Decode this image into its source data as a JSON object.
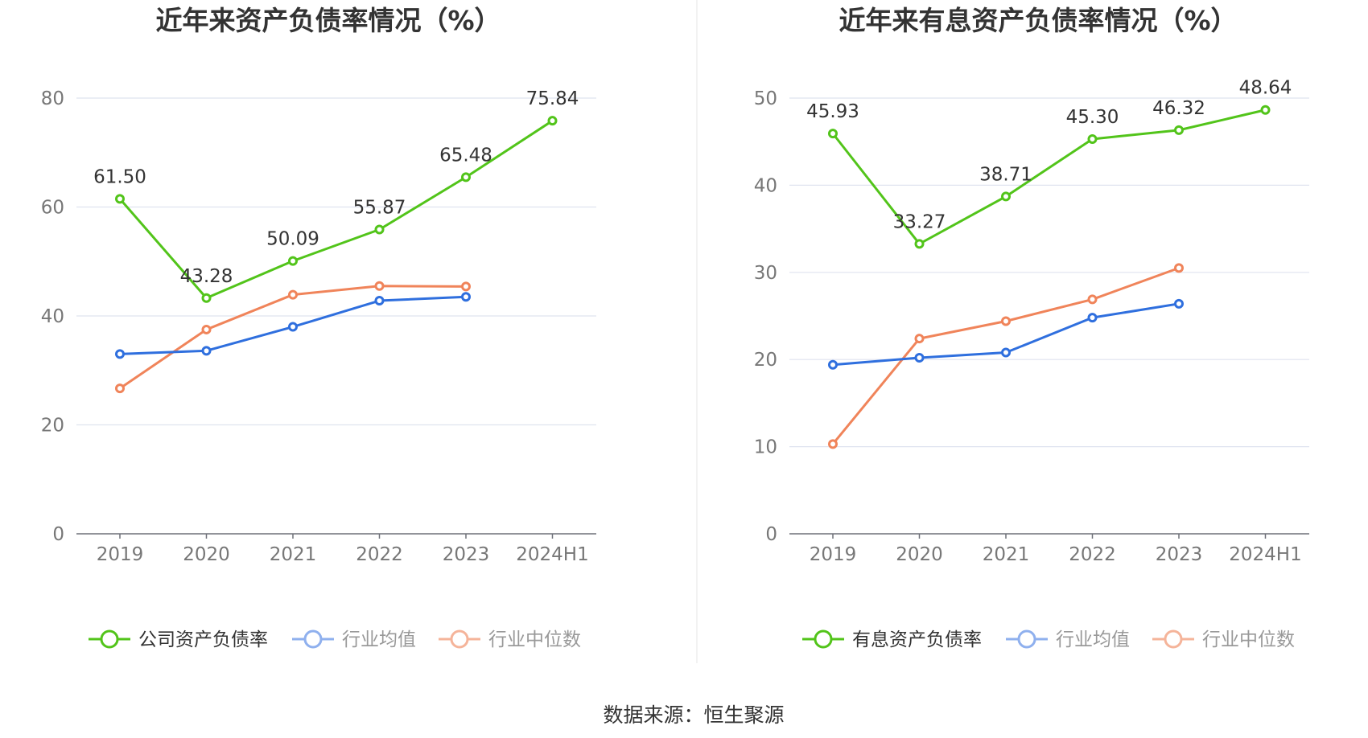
{
  "source": "数据来源：恒生聚源",
  "chart_data": [
    {
      "type": "line",
      "title": "近年来资产负债率情况（%）",
      "categories": [
        "2019",
        "2020",
        "2021",
        "2022",
        "2023",
        "2024H1"
      ],
      "ylim": [
        0,
        80
      ],
      "yticks": [
        0,
        20,
        40,
        60,
        80
      ],
      "grid": true,
      "legend_position": "bottom",
      "series": [
        {
          "name": "公司资产负债率",
          "color": "#52c41a",
          "values": [
            61.5,
            43.28,
            50.09,
            55.87,
            65.48,
            75.84
          ],
          "labels": [
            "61.50",
            "43.28",
            "50.09",
            "55.87",
            "65.48",
            "75.84"
          ]
        },
        {
          "name": "行业均值",
          "color": "#2f6fde",
          "values": [
            33.0,
            33.6,
            38.0,
            42.8,
            43.5,
            null
          ]
        },
        {
          "name": "行业中位数",
          "color": "#f0845a",
          "values": [
            26.7,
            37.5,
            43.9,
            45.5,
            45.4,
            null
          ]
        }
      ]
    },
    {
      "type": "line",
      "title": "近年来有息资产负债率情况（%）",
      "categories": [
        "2019",
        "2020",
        "2021",
        "2022",
        "2023",
        "2024H1"
      ],
      "ylim": [
        0,
        50
      ],
      "yticks": [
        0,
        10,
        20,
        30,
        40,
        50
      ],
      "grid": true,
      "legend_position": "bottom",
      "series": [
        {
          "name": "有息资产负债率",
          "color": "#52c41a",
          "values": [
            45.93,
            33.27,
            38.71,
            45.3,
            46.32,
            48.64
          ],
          "labels": [
            "45.93",
            "33.27",
            "38.71",
            "45.30",
            "46.32",
            "48.64"
          ]
        },
        {
          "name": "行业均值",
          "color": "#2f6fde",
          "values": [
            19.4,
            20.2,
            20.8,
            24.8,
            26.4,
            null
          ]
        },
        {
          "name": "行业中位数",
          "color": "#f0845a",
          "values": [
            10.3,
            22.4,
            24.4,
            26.9,
            30.5,
            null
          ]
        }
      ]
    }
  ]
}
